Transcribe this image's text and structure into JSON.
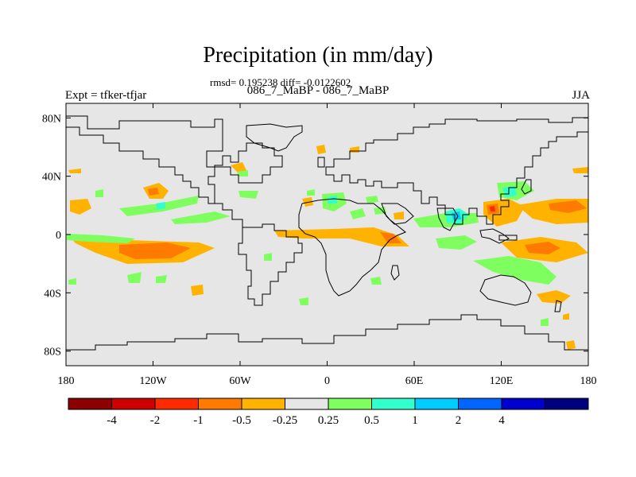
{
  "title": "Precipitation (in mm/day)",
  "stats_line": "rmsd= 0.195238 diff= -0.0122602",
  "subtitle": "086_7_MaBP - 086_7_MaBP",
  "expt_label": "Expt = tfker-tfjar",
  "season_label": "JJA",
  "map": {
    "lat_ticks": [
      {
        "value": 80,
        "label": "80N"
      },
      {
        "value": 40,
        "label": "40N"
      },
      {
        "value": 0,
        "label": "0"
      },
      {
        "value": -40,
        "label": "40S"
      },
      {
        "value": -80,
        "label": "80S"
      }
    ],
    "lon_ticks": [
      {
        "value": -180,
        "label": "180"
      },
      {
        "value": -120,
        "label": "120W"
      },
      {
        "value": -60,
        "label": "60W"
      },
      {
        "value": 0,
        "label": "0"
      },
      {
        "value": 60,
        "label": "60E"
      },
      {
        "value": 120,
        "label": "120E"
      },
      {
        "value": 180,
        "label": "180"
      }
    ],
    "lon_range": [
      -180,
      180
    ],
    "lat_range": [
      -90,
      90
    ],
    "background_color": "#e6e6e6"
  },
  "colorbar": {
    "colors": [
      "#8b0000",
      "#cc0000",
      "#ff2a00",
      "#ff7a00",
      "#ffb300",
      "#e6e6e6",
      "#7fff5f",
      "#33ffcc",
      "#00ccff",
      "#0066ff",
      "#0000cc",
      "#00007f"
    ],
    "labels": [
      "-4",
      "-2",
      "-1",
      "-0.5",
      "-0.25",
      "0.25",
      "0.5",
      "1",
      "2",
      "4"
    ]
  }
}
